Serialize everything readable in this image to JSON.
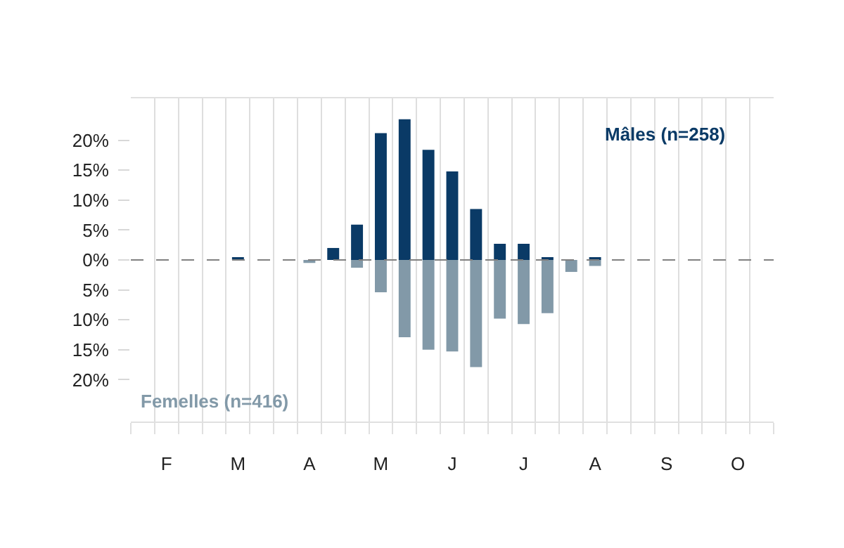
{
  "chart_data": {
    "type": "bar",
    "categories": [
      null,
      "F",
      null,
      null,
      "M",
      null,
      null,
      "A",
      null,
      null,
      "M",
      null,
      null,
      "J",
      null,
      null,
      "J",
      null,
      null,
      "A",
      null,
      null,
      "S",
      null,
      null,
      "O",
      null
    ],
    "series": [
      {
        "name": "Mâles (n=258)",
        "color": "#0a3a66",
        "values": [
          0,
          0,
          0,
          0,
          0.3,
          0,
          0,
          0,
          2,
          5.9,
          21.2,
          23.5,
          18.4,
          14.8,
          8.5,
          2.7,
          2.7,
          0.3,
          0,
          0.3,
          null,
          0,
          0,
          0,
          0,
          0,
          0
        ]
      },
      {
        "name": "Femelles (n=416)",
        "color": "#8299a8",
        "values": [
          0,
          0,
          0,
          0,
          0,
          0,
          0,
          -0.5,
          0,
          -1.3,
          -5.4,
          -12.9,
          -15,
          -15.3,
          -17.9,
          -9.8,
          -10.7,
          -8.9,
          -2,
          -1,
          0,
          0,
          0,
          0,
          0,
          0,
          0
        ]
      }
    ],
    "ylim": [
      -27,
      27
    ],
    "yticks": [
      {
        "value": 20,
        "label": "20%"
      },
      {
        "value": 15,
        "label": "15%"
      },
      {
        "value": 10,
        "label": "10%"
      },
      {
        "value": 5,
        "label": "5%"
      },
      {
        "value": 0,
        "label": "0%"
      },
      {
        "value": -5,
        "label": "5%"
      },
      {
        "value": -10,
        "label": "10%"
      },
      {
        "value": -15,
        "label": "15%"
      },
      {
        "value": -20,
        "label": "20%"
      }
    ],
    "ref_lines": [
      {
        "axis": "y",
        "value": 0,
        "color": "#808080",
        "line_style": "dashed"
      }
    ],
    "grid": "x",
    "legend": false
  }
}
